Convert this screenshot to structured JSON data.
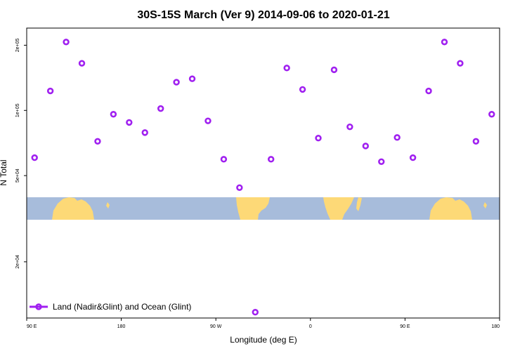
{
  "chart_data": {
    "type": "scatter",
    "title": "30S-15S March (Ver 9)   2014-09-06 to 2020-01-21",
    "xlabel": "Longitude (deg E)",
    "ylabel": "N Total",
    "xlim": [
      90,
      540
    ],
    "ylim": [
      11000,
      240000
    ],
    "y_scale": "log",
    "x_ticks": [
      {
        "value": 90,
        "label": "90 E"
      },
      {
        "value": 180,
        "label": "180"
      },
      {
        "value": 270,
        "label": "90 W"
      },
      {
        "value": 360,
        "label": "0"
      },
      {
        "value": 450,
        "label": "90 E"
      },
      {
        "value": 540,
        "label": "180"
      }
    ],
    "y_ticks": [
      {
        "value": 20000,
        "label": "2e+04"
      },
      {
        "value": 50000,
        "label": "5e+04"
      },
      {
        "value": 100000,
        "label": "1e+05"
      },
      {
        "value": 200000,
        "label": "2e+05"
      }
    ],
    "legend": {
      "label": "Land (Nadir&Glint) and Ocean (Glint)",
      "position": "bottom-left"
    },
    "marker_color": "#a020f0",
    "map_colors": {
      "ocean": "#a7bcdb",
      "land": "#fdd977"
    },
    "series": [
      {
        "name": "Land (Nadir&Glint) and Ocean (Glint)",
        "points": [
          {
            "x": 97.5,
            "y": 60500
          },
          {
            "x": 112.5,
            "y": 123000
          },
          {
            "x": 127.5,
            "y": 207000
          },
          {
            "x": 142.5,
            "y": 165000
          },
          {
            "x": 157.5,
            "y": 72000
          },
          {
            "x": 172.5,
            "y": 96000
          },
          {
            "x": 187.5,
            "y": 88000
          },
          {
            "x": 202.5,
            "y": 79000
          },
          {
            "x": 217.5,
            "y": 102000
          },
          {
            "x": 232.5,
            "y": 135000
          },
          {
            "x": 247.5,
            "y": 140000
          },
          {
            "x": 262.5,
            "y": 89500
          },
          {
            "x": 277.5,
            "y": 59500
          },
          {
            "x": 292.5,
            "y": 44000
          },
          {
            "x": 307.5,
            "y": 11700
          },
          {
            "x": 322.5,
            "y": 59500
          },
          {
            "x": 337.5,
            "y": 157000
          },
          {
            "x": 352.5,
            "y": 125000
          },
          {
            "x": 367.5,
            "y": 74500
          },
          {
            "x": 382.5,
            "y": 154000
          },
          {
            "x": 397.5,
            "y": 84000
          },
          {
            "x": 412.5,
            "y": 68500
          },
          {
            "x": 427.5,
            "y": 58000
          },
          {
            "x": 442.5,
            "y": 75000
          },
          {
            "x": 457.5,
            "y": 60500
          },
          {
            "x": 472.5,
            "y": 123000
          },
          {
            "x": 487.5,
            "y": 207000
          },
          {
            "x": 502.5,
            "y": 165000
          },
          {
            "x": 517.5,
            "y": 72000
          },
          {
            "x": 532.5,
            "y": 96000
          }
        ]
      }
    ]
  }
}
